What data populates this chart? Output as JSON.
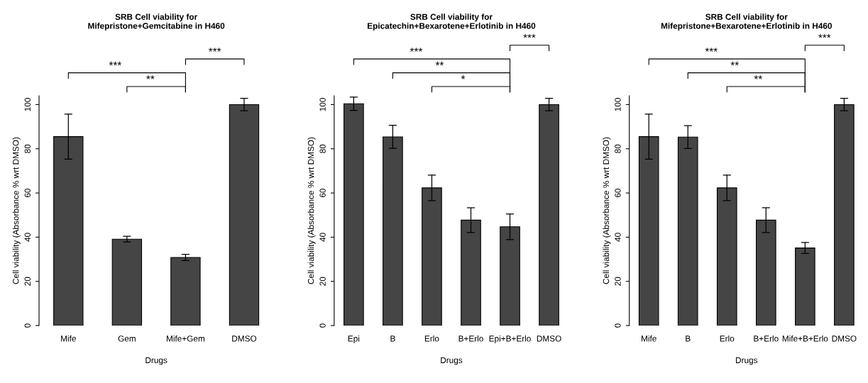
{
  "chart_data": [
    {
      "type": "bar",
      "title": "SRB Cell viability for\nMifepristone+Gemcitabine in H460",
      "xlabel": "Drugs",
      "ylabel": "Cell viability (Absorbance % wrt DMSO)",
      "categories": [
        "Mife",
        "Gem",
        "Mife+Gem",
        "DMSO"
      ],
      "values": [
        85.5,
        39.1,
        30.8,
        100
      ],
      "errors": [
        10.2,
        1.3,
        1.4,
        2.8
      ],
      "color": "#454545",
      "ylim": [
        0,
        104
      ],
      "yticks": [
        0,
        20,
        40,
        60,
        80,
        100
      ],
      "annotations": [
        "***",
        "**",
        "***"
      ]
    },
    {
      "type": "bar",
      "title": "SRB Cell viability for\nEpicatechin+Bexarotene+Erlotinib in H460",
      "xlabel": "Drugs",
      "ylabel": "Cell viability (Absorbance % wrt DMSO)",
      "categories": [
        "Epi",
        "B",
        "Erlo",
        "B+Erlo",
        "Epi+B+Erlo",
        "DMSO"
      ],
      "values": [
        100.4,
        85.4,
        62.3,
        47.7,
        44.7,
        100
      ],
      "errors": [
        3.0,
        5.2,
        5.8,
        5.6,
        5.8,
        2.8
      ],
      "color": "#454545",
      "ylim": [
        0,
        104
      ],
      "yticks": [
        0,
        20,
        40,
        60,
        80,
        100
      ],
      "annotations": [
        "***",
        "**",
        "*",
        "***"
      ]
    },
    {
      "type": "bar",
      "title": "SRB Cell viability for\nMifepristone+Bexarotene+Erlotinib in H460",
      "xlabel": "Drugs",
      "ylabel": "Cell viability (Absorbance % wrt DMSO)",
      "categories": [
        "Mife",
        "B",
        "Erlo",
        "B+Erlo",
        "Mife+B+Erlo",
        "DMSO"
      ],
      "values": [
        85.5,
        85.3,
        62.3,
        47.7,
        35.1,
        100
      ],
      "errors": [
        10.2,
        5.2,
        5.8,
        5.6,
        2.5,
        2.8
      ],
      "color": "#454545",
      "ylim": [
        0,
        104
      ],
      "yticks": [
        0,
        20,
        40,
        60,
        80,
        100
      ],
      "annotations": [
        "***",
        "**",
        "**",
        "***"
      ]
    }
  ]
}
